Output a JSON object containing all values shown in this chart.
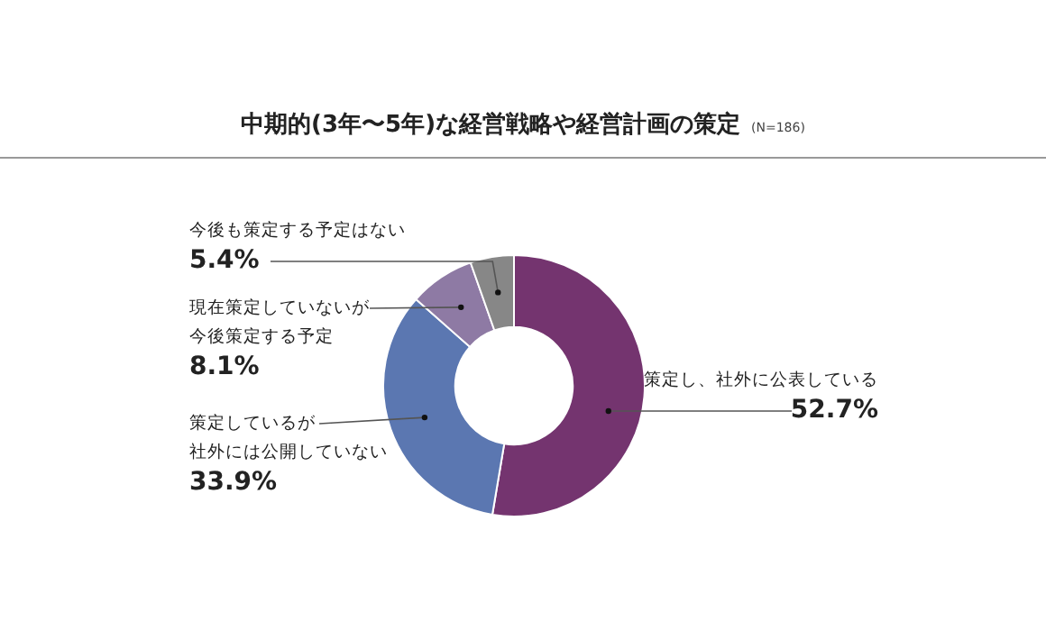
{
  "chart_data": {
    "type": "donut",
    "title": "中期的(3年〜5年)な経営戦略や経営計画の策定",
    "subtitle": "(N=186)",
    "categories": [
      "策定し、社外に公表している",
      "策定しているが社外には公開していない",
      "現在策定していないが今後策定する予定",
      "今後も策定する予定はない"
    ],
    "values": [
      52.7,
      33.9,
      8.1,
      5.4
    ],
    "colors": [
      "#74346f",
      "#5b77b1",
      "#8e7aa4",
      "#878787"
    ],
    "value_labels": [
      "52.7%",
      "33.9%",
      "8.1%",
      "5.4%"
    ],
    "legend": false
  }
}
